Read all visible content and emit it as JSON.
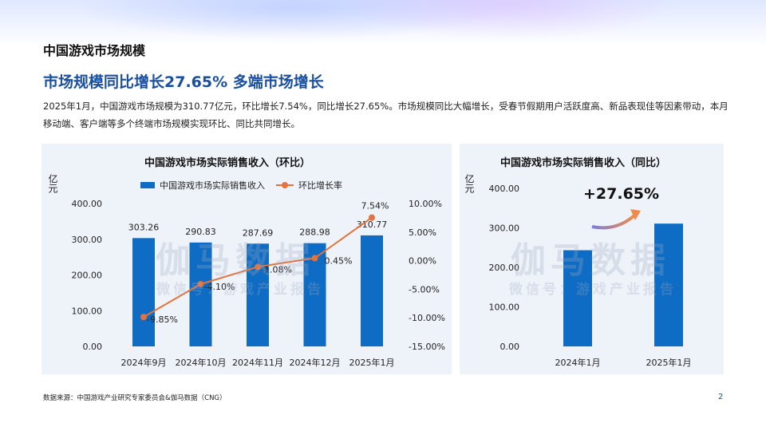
{
  "page": {
    "section_title": "中国游戏市场规模",
    "headline": "市场规模同比增长27.65%  多端市场增长",
    "summary": "2025年1月，中国游戏市场规模为310.77亿元，环比增长7.54%，同比增长27.65%。市场规模同比大幅增长，受春节假期用户活跃度高、新品表现佳等因素带动，本月移动端、客户端等多个终端市场规模实现环比、同比共同增长。",
    "source": "数据来源：中国游戏产业研究专家委员会&伽马数据（CNG）",
    "page_number": "2",
    "watermark_main": "伽马数据",
    "watermark_sub": "微信号：游戏产业报告",
    "colors": {
      "bar": "#0e6cc4",
      "line": "#e2733c",
      "headline": "#1a4fa0",
      "panel": "#eef3fa"
    }
  },
  "chart_data": [
    {
      "type": "bar",
      "title": "中国游戏市场实际销售收入（环比）",
      "y_unit_label": "亿元",
      "categories": [
        "2024年9月",
        "2024年10月",
        "2024年11月",
        "2024年12月",
        "2025年1月"
      ],
      "series": [
        {
          "name": "中国游戏市场实际销售收入",
          "kind": "bar",
          "axis": "left",
          "values": [
            303.26,
            290.83,
            287.69,
            288.98,
            310.77
          ],
          "labels": [
            "303.26",
            "290.83",
            "287.69",
            "288.98",
            "310.77"
          ]
        },
        {
          "name": "环比增长率",
          "kind": "line",
          "axis": "right",
          "values": [
            -9.85,
            -4.1,
            -1.08,
            0.45,
            7.54
          ],
          "labels": [
            "-9.85%",
            "-4.10%",
            "-1.08%",
            "0.45%",
            "7.54%"
          ]
        }
      ],
      "ylim": [
        0,
        400
      ],
      "yticks": [
        "0.00",
        "100.00",
        "200.00",
        "300.00",
        "400.00"
      ],
      "y2lim": [
        -15,
        10
      ],
      "y2ticks": [
        "-15.00%",
        "-10.00%",
        "-5.00%",
        "0.00%",
        "5.00%",
        "10.00%"
      ],
      "legend_position": "top",
      "grid": false
    },
    {
      "type": "bar",
      "title": "中国游戏市场实际销售收入（同比）",
      "y_unit_label": "亿元",
      "categories": [
        "2024年1月",
        "2025年1月"
      ],
      "values": [
        243.46,
        310.77
      ],
      "ylim": [
        0,
        400
      ],
      "yticks": [
        "0.00",
        "100.00",
        "200.00",
        "300.00",
        "400.00"
      ],
      "annotation": "+27.65%",
      "grid": false
    }
  ]
}
